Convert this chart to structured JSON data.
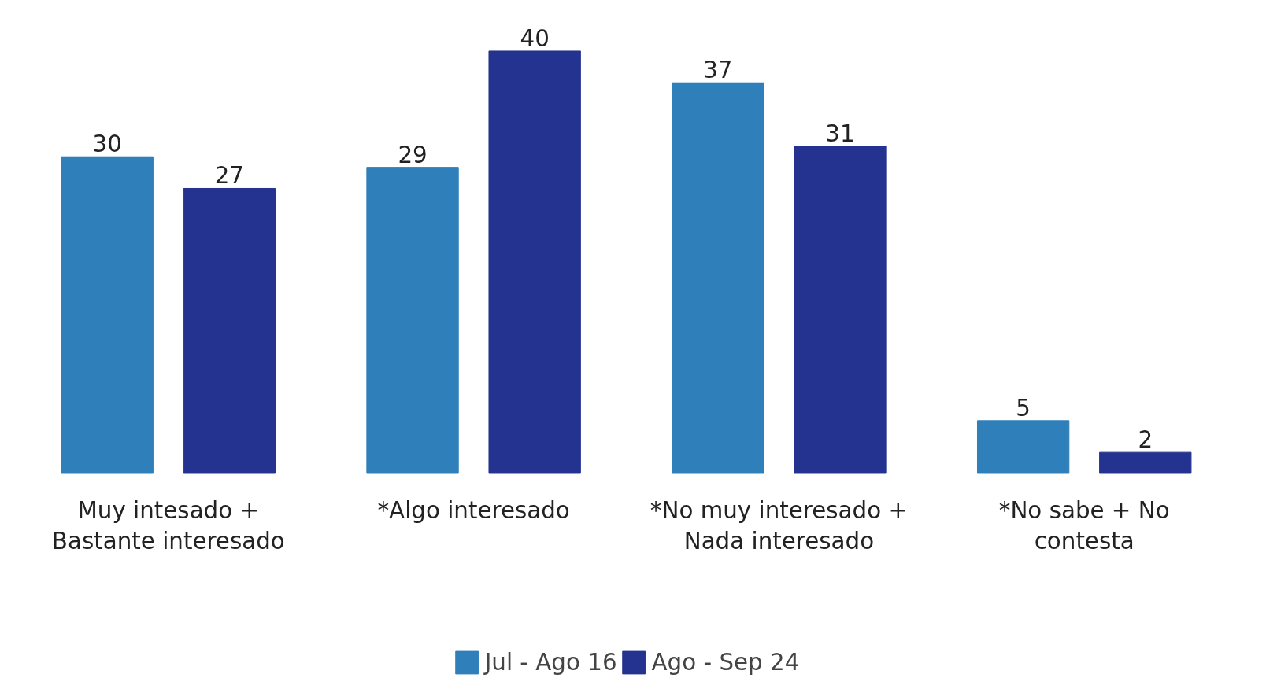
{
  "chart_data": {
    "type": "bar",
    "categories": [
      "Muy intesado + Bastante interesado",
      "*Algo interesado",
      "*No muy interesado + Nada interesado",
      "*No sabe + No contesta"
    ],
    "series": [
      {
        "name": "Jul - Ago 16",
        "color": "#2e7fba",
        "values": [
          30,
          29,
          37,
          5
        ]
      },
      {
        "name": "Ago - Sep 24",
        "color": "#24338f",
        "values": [
          27,
          40,
          31,
          2
        ]
      }
    ],
    "data_labels": true,
    "legend": "bottom",
    "grid": false
  }
}
